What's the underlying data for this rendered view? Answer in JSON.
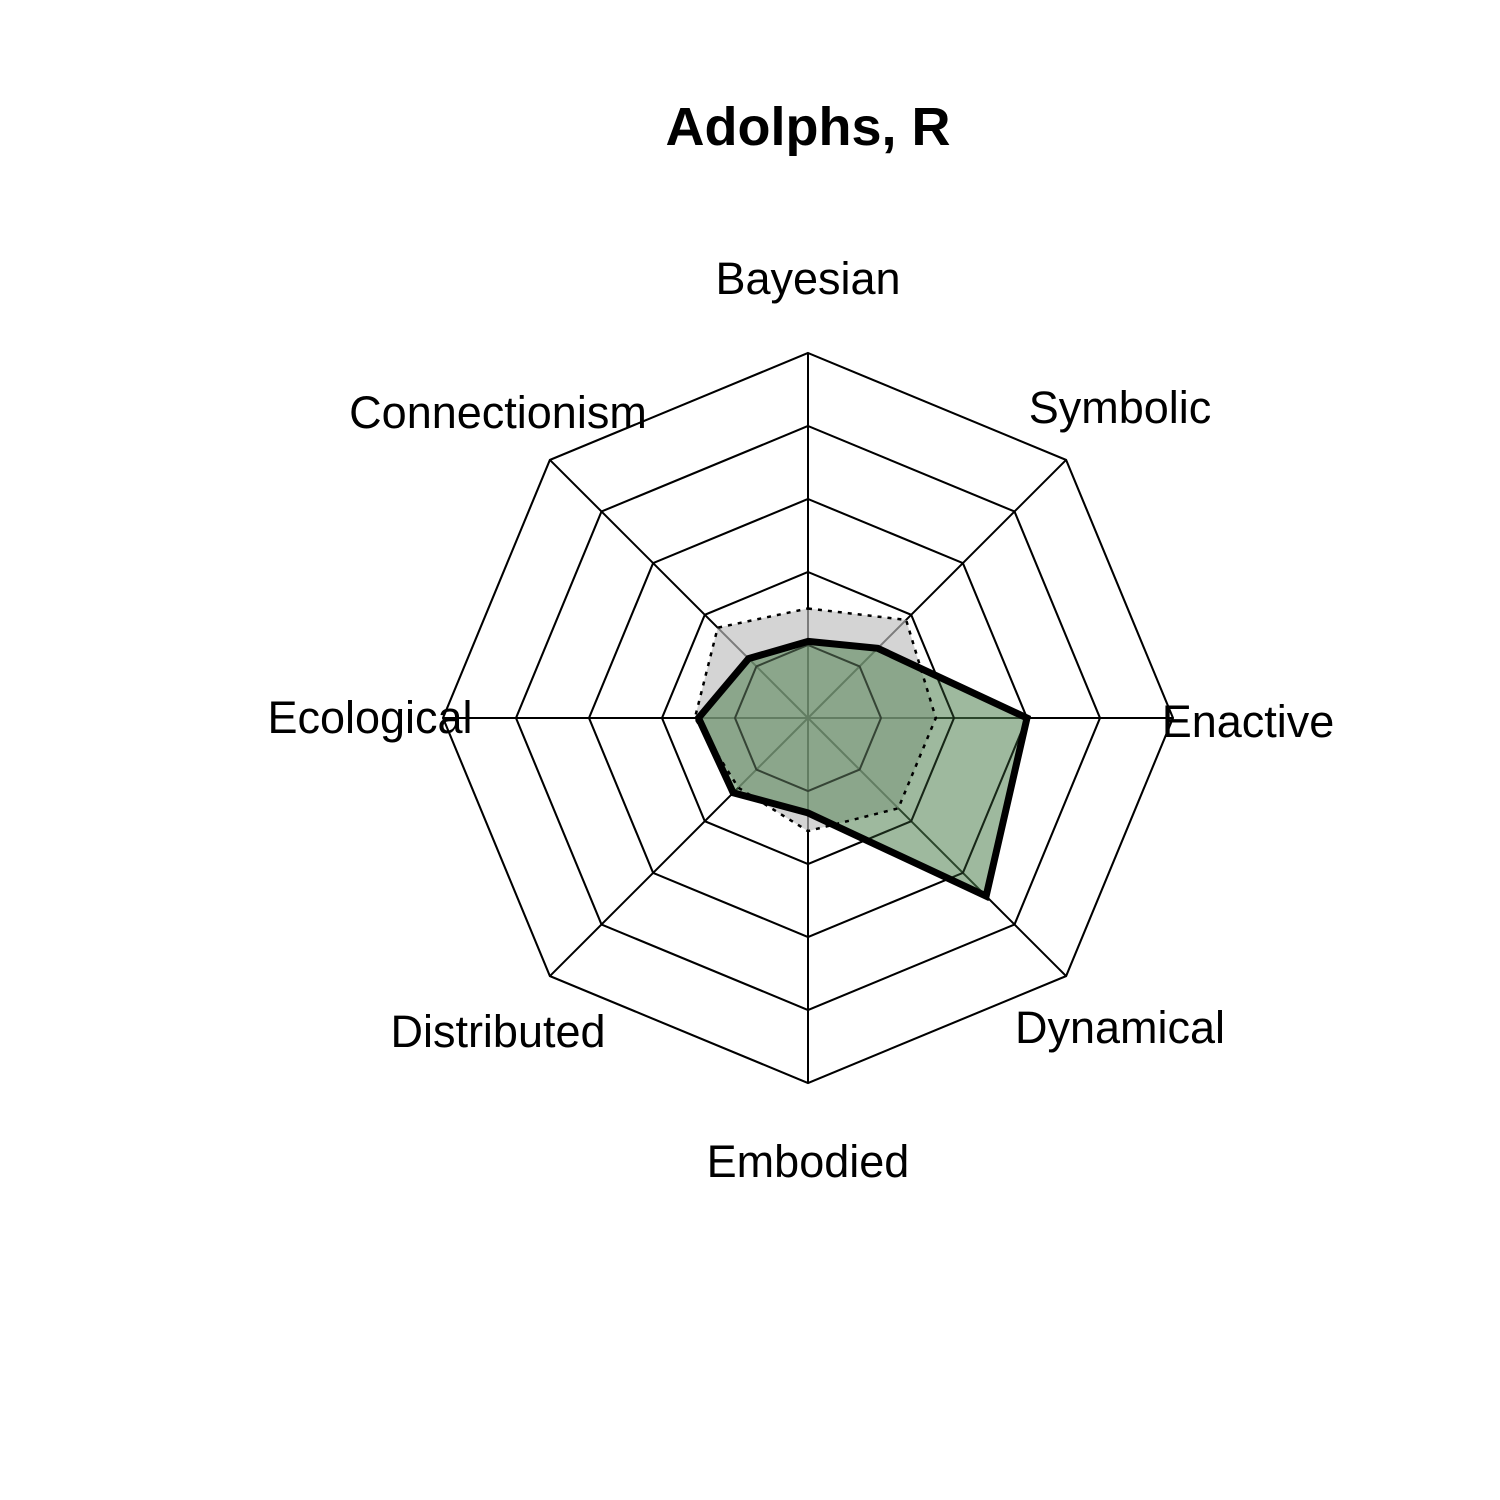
{
  "chart_data": {
    "type": "radar",
    "title": "Adolphs, R",
    "axes": [
      "Bayesian",
      "Symbolic",
      "Enactive",
      "Dynamical",
      "Embodied",
      "Distributed",
      "Ecological",
      "Connectionism"
    ],
    "range": [
      0,
      5
    ],
    "grid_levels": 5,
    "series": [
      {
        "values": [
          1.05,
          1.35,
          3.0,
          3.45,
          1.3,
          1.45,
          1.5,
          1.15
        ],
        "fill": "#4f7f4f",
        "fill_opacity": 0.55,
        "stroke": "#000000",
        "line_style": "solid"
      },
      {
        "values": [
          1.5,
          1.9,
          1.75,
          1.75,
          1.55,
          1.35,
          1.55,
          1.75
        ],
        "fill": "#bdbdbd",
        "fill_opacity": 0.65,
        "stroke": "#000000",
        "line_style": "dotted"
      }
    ]
  }
}
